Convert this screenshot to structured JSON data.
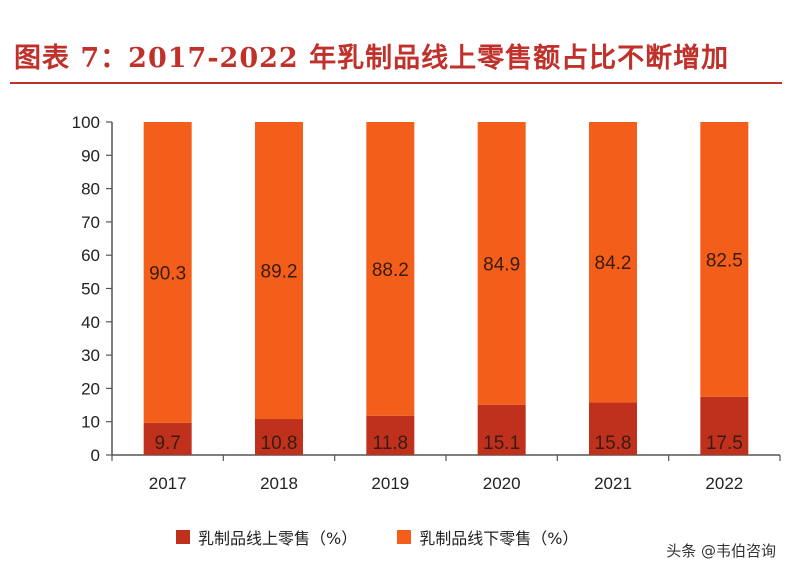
{
  "title": "图表 7：2017-2022 年乳制品线上零售额占比不断增加",
  "watermark": "头条 @韦伯咨询",
  "colors": {
    "title": "#c0312b",
    "online": "#c0311d",
    "offline": "#f35f1a"
  },
  "chart_data": {
    "type": "bar",
    "stacked": true,
    "categories": [
      "2017",
      "2018",
      "2019",
      "2020",
      "2021",
      "2022"
    ],
    "series": [
      {
        "name": "乳制品线上零售（%）",
        "values": [
          9.7,
          10.8,
          11.8,
          15.1,
          15.8,
          17.5
        ],
        "color": "#c0311d"
      },
      {
        "name": "乳制品线下零售（%）",
        "values": [
          90.3,
          89.2,
          88.2,
          84.9,
          84.2,
          82.5
        ],
        "color": "#f35f1a"
      }
    ],
    "ylim": [
      0,
      100
    ],
    "yticks": [
      0,
      10,
      20,
      30,
      40,
      50,
      60,
      70,
      80,
      90,
      100
    ],
    "grid": false,
    "legend": "bottom"
  }
}
